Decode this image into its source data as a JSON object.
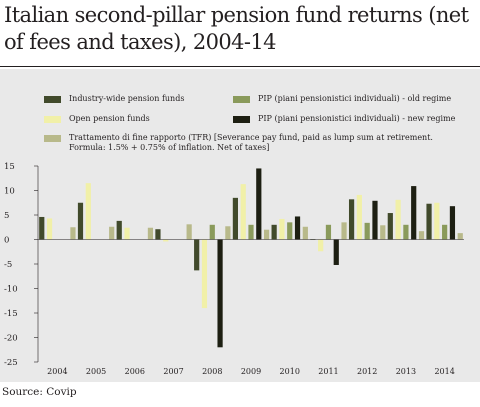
{
  "title": "Italian second-pillar pension fund returns (net of fees and taxes), 2004-14",
  "source": "Source: Covip",
  "colors": {
    "Industry-wide pension funds": "#414a2b",
    "Open pension funds": "#f1f0a8",
    "PIP (piani pensionistici individuali) - old regime": "#8a9a5b",
    "PIP (piani pensionistici individuali) - new regime": "#1d1f12",
    "Trattamento di fine rapporto (TFR) [Severance pay fund, paid as lump sum at retirement. Formula: 1.5% + 0.75% of inflation. Net of taxes]": "#b8b98a"
  },
  "chart_data": {
    "type": "bar",
    "title": "Italian second-pillar pension fund returns (net of fees and taxes), 2004-14",
    "xlabel": "",
    "ylabel": "",
    "ylim": [
      -25,
      15
    ],
    "yticks": [
      15,
      10,
      5,
      0,
      -5,
      -10,
      -15,
      -20,
      -25
    ],
    "grid": false,
    "legend": "top",
    "categories": [
      "2004",
      "2005",
      "2006",
      "2007",
      "2008",
      "2009",
      "2010",
      "2011",
      "2012",
      "2013",
      "2014"
    ],
    "series": [
      {
        "name": "Industry-wide pension funds",
        "values": [
          4.6,
          7.5,
          3.8,
          2.1,
          -6.3,
          8.5,
          3.0,
          0.1,
          8.2,
          5.4,
          7.3
        ]
      },
      {
        "name": "Open pension funds",
        "values": [
          4.3,
          11.5,
          2.4,
          -0.4,
          -14.0,
          11.3,
          4.2,
          -2.4,
          9.1,
          8.1,
          7.5
        ]
      },
      {
        "name": "PIP (piani pensionistici individuali) - old regime",
        "values": [
          0,
          0,
          0,
          0,
          3.0,
          3.0,
          3.5,
          3.0,
          3.4,
          3.0,
          3.0
        ]
      },
      {
        "name": "PIP (piani pensionistici individuali) - new regime",
        "values": [
          0,
          0,
          0,
          0,
          -22.0,
          14.5,
          4.7,
          -5.2,
          7.9,
          10.9,
          6.8
        ]
      },
      {
        "name": "Trattamento di fine rapporto (TFR) [Severance pay fund, paid as lump sum at retirement. Formula: 1.5% + 0.75% of inflation. Net of taxes]",
        "values": [
          2.5,
          2.6,
          2.4,
          3.1,
          2.7,
          2.0,
          2.6,
          3.5,
          2.9,
          1.7,
          1.3
        ]
      }
    ]
  }
}
